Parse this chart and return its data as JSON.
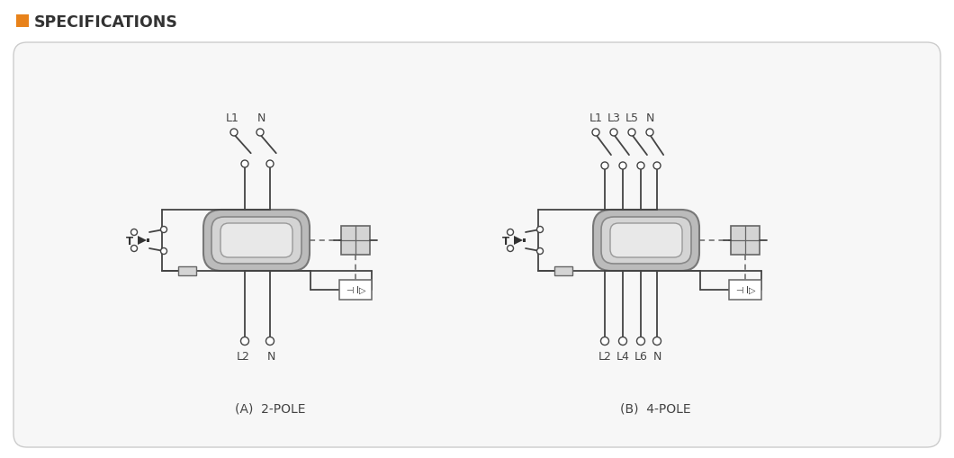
{
  "title": "SPECIFICATIONS",
  "title_color": "#333333",
  "title_icon_color": "#E8821A",
  "background_color": "#FFFFFF",
  "panel_bg": "#F7F7F7",
  "panel_edge": "#CCCCCC",
  "line_color": "#444444",
  "gray1": "#BBBBBB",
  "gray2": "#D4D4D4",
  "gray3": "#E8E8E8",
  "diagram_A_label": "(A)  2-POLE",
  "diagram_B_label": "(B)  4-POLE",
  "top_labels_A": [
    "L1",
    "N"
  ],
  "bottom_labels_A": [
    "L2",
    "N"
  ],
  "top_labels_B": [
    "L1",
    "L3",
    "L5",
    "N"
  ],
  "bottom_labels_B": [
    "L2",
    "L4",
    "L6",
    "N"
  ]
}
